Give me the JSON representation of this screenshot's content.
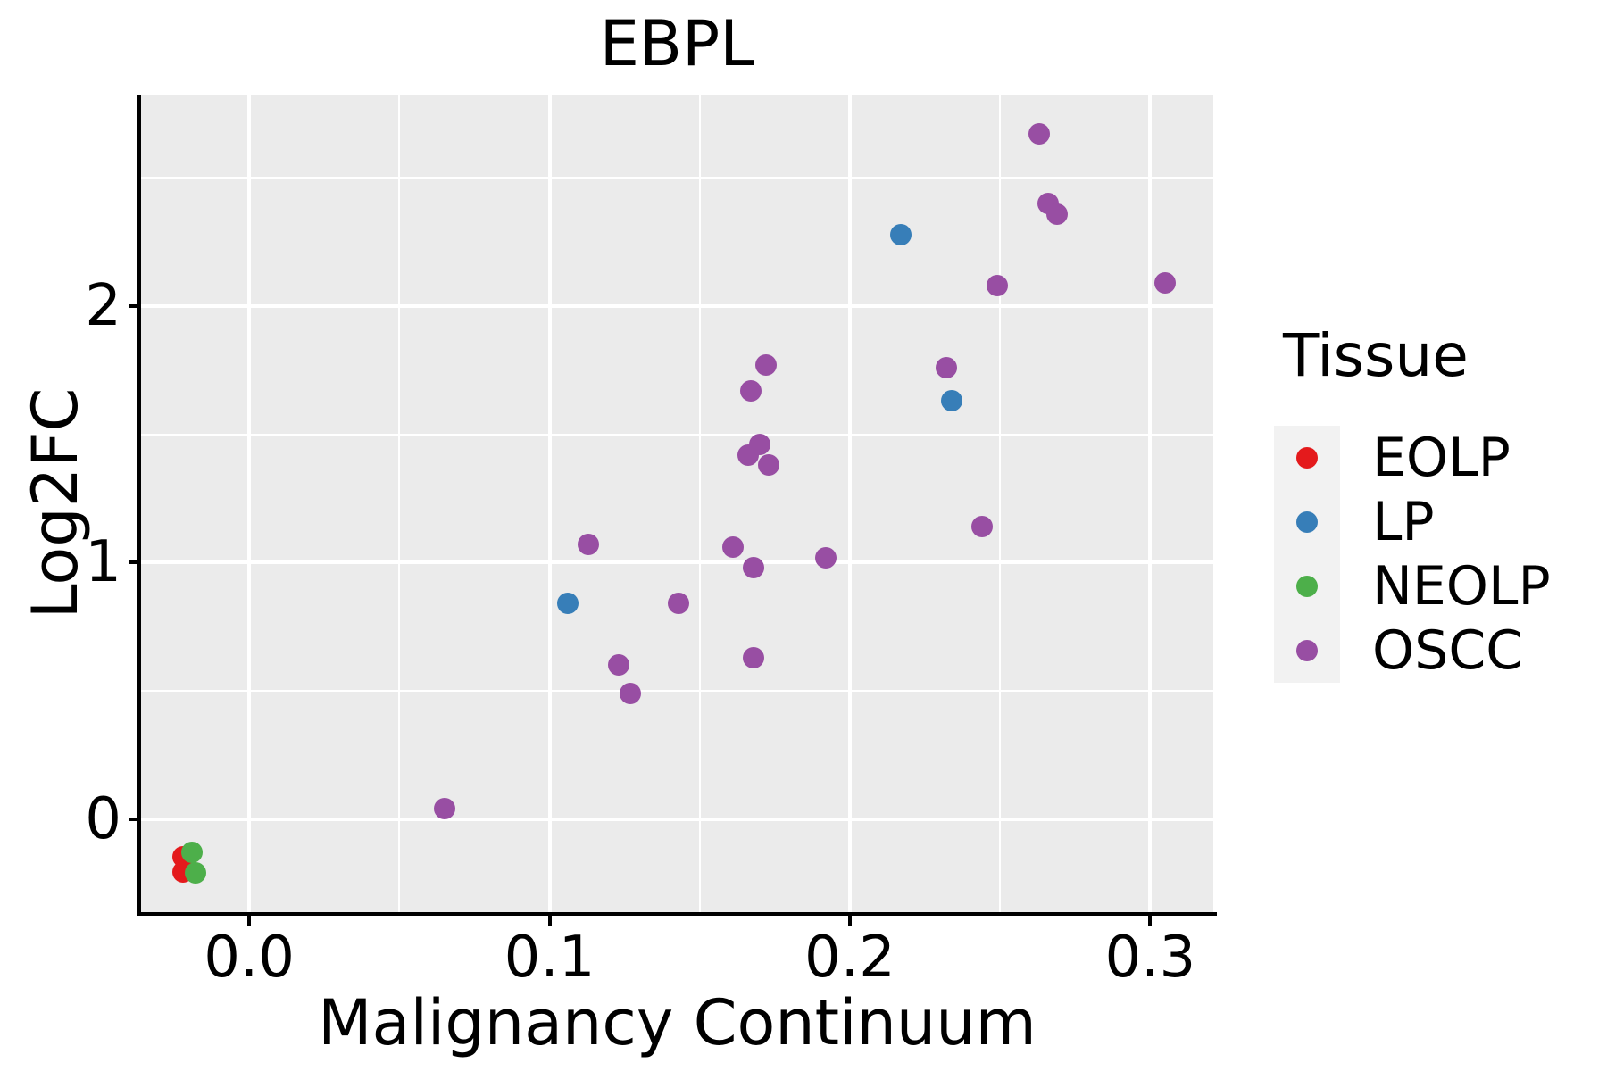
{
  "chart_data": {
    "type": "scatter",
    "title": "EBPL",
    "xlabel": "Malignancy Continuum",
    "ylabel": "Log2FC",
    "xlim": [
      -0.036,
      0.321
    ],
    "ylim": [
      -0.362,
      2.821
    ],
    "x_ticks": {
      "values": [
        0.0,
        0.1,
        0.2,
        0.3
      ],
      "labels": [
        "0.0",
        "0.1",
        "0.2",
        "0.3"
      ],
      "minor": [
        0.05,
        0.15,
        0.25
      ]
    },
    "y_ticks": {
      "values": [
        0,
        1,
        2
      ],
      "labels": [
        "0",
        "1",
        "2"
      ],
      "minor": [
        0.5,
        1.5,
        2.5
      ]
    },
    "grid": {
      "major": true,
      "minor": true,
      "color": "#FFFFFF",
      "panel_background": "#EBEBEB"
    },
    "legend": {
      "title": "Tissue",
      "position": "right"
    },
    "series": [
      {
        "name": "EOLP",
        "color": "#E41A1C",
        "points": [
          [
            -0.022,
            -0.145
          ],
          [
            -0.022,
            -0.205
          ]
        ]
      },
      {
        "name": "LP",
        "color": "#377EB8",
        "points": [
          [
            0.106,
            0.84
          ],
          [
            0.217,
            2.28
          ],
          [
            0.234,
            1.63
          ]
        ]
      },
      {
        "name": "NEOLP",
        "color": "#4DAF4A",
        "points": [
          [
            -0.019,
            -0.13
          ],
          [
            -0.018,
            -0.21
          ]
        ]
      },
      {
        "name": "OSCC",
        "color": "#984EA3",
        "points": [
          [
            0.065,
            0.04
          ],
          [
            0.113,
            1.07
          ],
          [
            0.123,
            0.6
          ],
          [
            0.127,
            0.49
          ],
          [
            0.143,
            0.84
          ],
          [
            0.161,
            1.06
          ],
          [
            0.166,
            1.42
          ],
          [
            0.17,
            1.46
          ],
          [
            0.173,
            1.38
          ],
          [
            0.167,
            1.67
          ],
          [
            0.172,
            1.77
          ],
          [
            0.168,
            0.98
          ],
          [
            0.168,
            0.63
          ],
          [
            0.192,
            1.02
          ],
          [
            0.232,
            1.76
          ],
          [
            0.244,
            1.14
          ],
          [
            0.249,
            2.08
          ],
          [
            0.263,
            2.67
          ],
          [
            0.266,
            2.4
          ],
          [
            0.269,
            2.36
          ],
          [
            0.305,
            2.09
          ]
        ]
      }
    ]
  },
  "colors": {
    "panel_background": "#EBEBEB",
    "gridline": "#FFFFFF",
    "axis_line": "#000000",
    "text": "#000000",
    "legend_key_background": "#F2F2F2"
  }
}
